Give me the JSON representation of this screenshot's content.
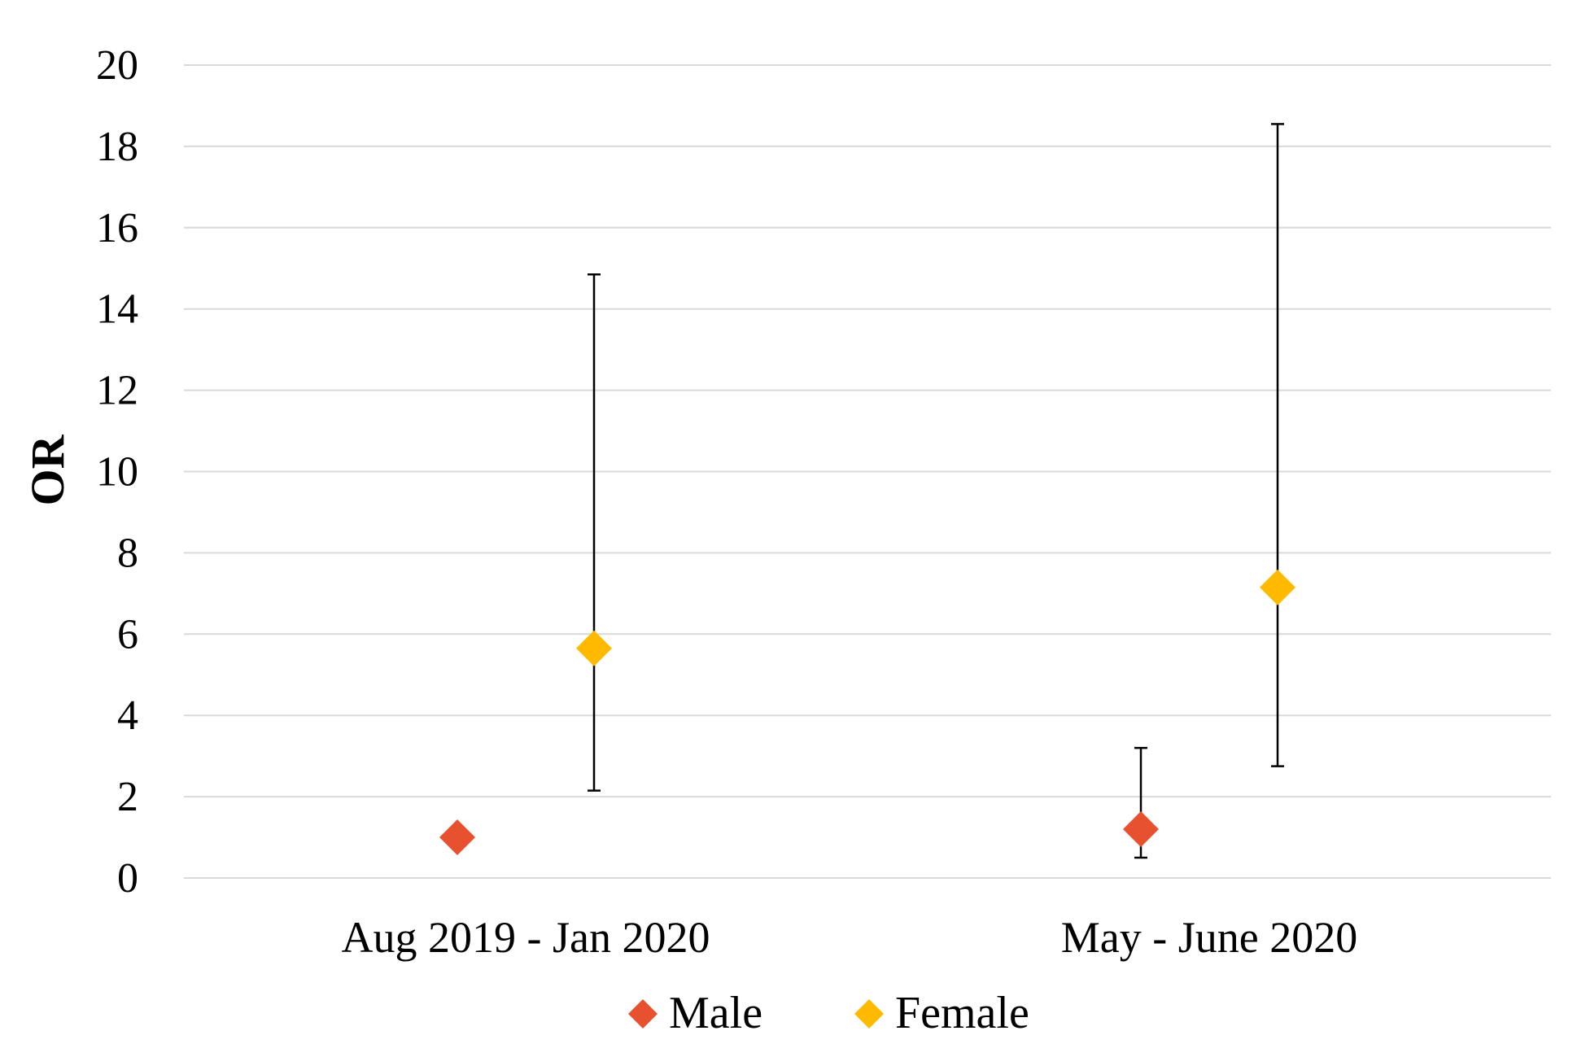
{
  "chart_data": {
    "type": "scatter",
    "title": "",
    "xlabel": "",
    "ylabel": "OR",
    "ylim": [
      0,
      20
    ],
    "yticks": [
      0,
      2,
      4,
      6,
      8,
      10,
      12,
      14,
      16,
      18,
      20
    ],
    "grid": true,
    "legend_position": "bottom",
    "categories": [
      "Aug 2019 - Jan 2020",
      "May - June 2020"
    ],
    "series": [
      {
        "name": "Male",
        "color": "#E8512F",
        "marker": "diamond",
        "values": [
          1.0,
          1.2
        ],
        "ci_lower": [
          null,
          0.5
        ],
        "ci_upper": [
          null,
          3.2
        ]
      },
      {
        "name": "Female",
        "color": "#FFBA00",
        "marker": "diamond",
        "values": [
          5.65,
          7.15
        ],
        "ci_lower": [
          2.15,
          2.75
        ],
        "ci_upper": [
          14.85,
          18.55
        ]
      }
    ]
  }
}
